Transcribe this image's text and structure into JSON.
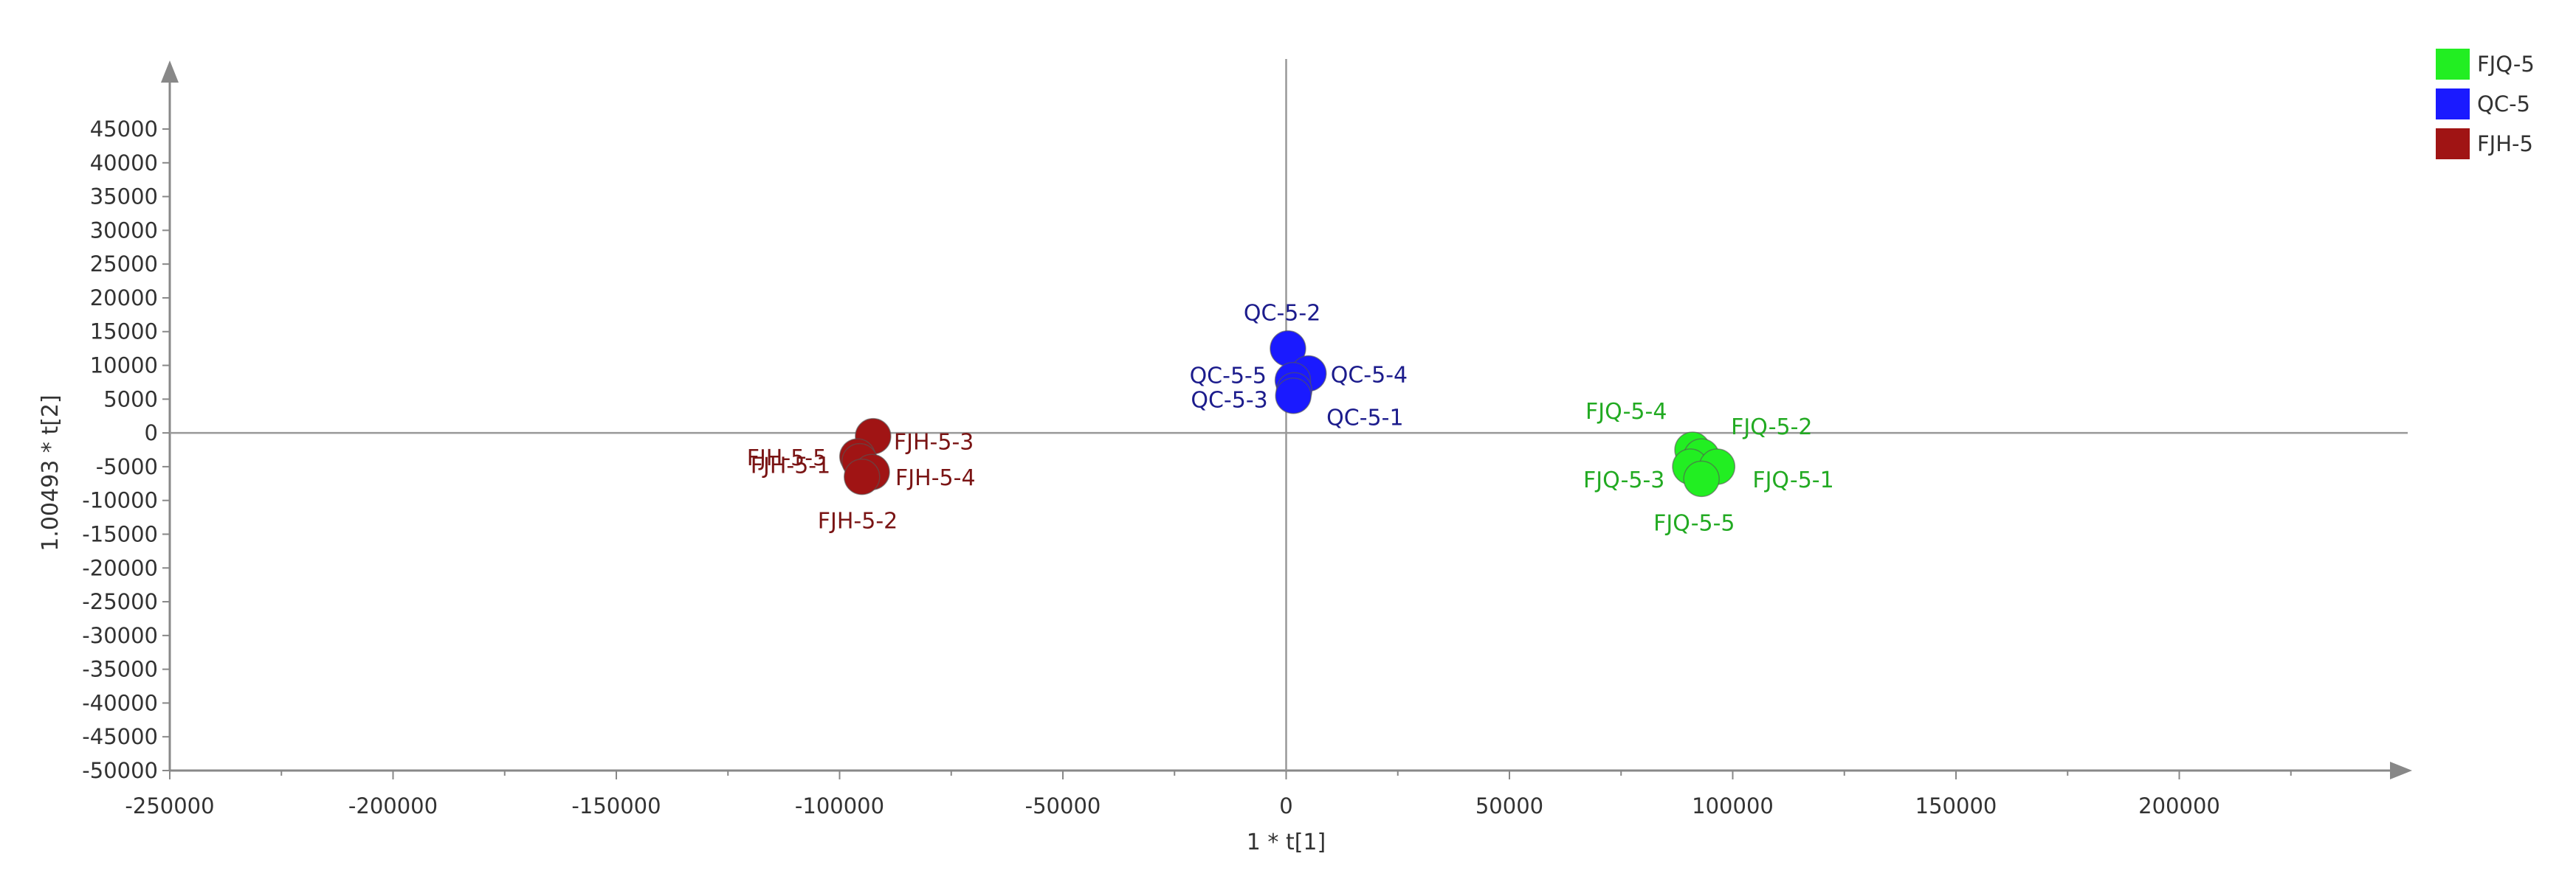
{
  "chart_data": {
    "type": "scatter",
    "xlabel": "1 * t[1]",
    "ylabel": "1.00493 * t[2]",
    "xlim": [
      -250000,
      250000
    ],
    "ylim": [
      -50000,
      50000
    ],
    "x_ticks": [
      -250000,
      -200000,
      -150000,
      -100000,
      -50000,
      0,
      50000,
      100000,
      150000,
      200000
    ],
    "y_ticks": [
      45000,
      40000,
      35000,
      30000,
      25000,
      20000,
      15000,
      10000,
      5000,
      0,
      -5000,
      -10000,
      -15000,
      -20000,
      -25000,
      -30000,
      -35000,
      -40000,
      -45000,
      -50000
    ],
    "grid": false,
    "legend_position": "top-right",
    "series": [
      {
        "name": "FJQ-5",
        "color": "#22ee22",
        "label_color": "#22aa22",
        "points": [
          {
            "label": "FJQ-5-4",
            "x": 91000,
            "y": -2500
          },
          {
            "label": "FJQ-5-2",
            "x": 93000,
            "y": -3500
          },
          {
            "label": "FJQ-5-3",
            "x": 90500,
            "y": -5000
          },
          {
            "label": "FJQ-5-1",
            "x": 96500,
            "y": -5000
          },
          {
            "label": "FJQ-5-5",
            "x": 93000,
            "y": -6800
          }
        ]
      },
      {
        "name": "QC-5",
        "color": "#1a1aff",
        "label_color": "#1c1c8c",
        "points": [
          {
            "label": "QC-5-2",
            "x": 400,
            "y": 12500
          },
          {
            "label": "QC-5-4",
            "x": 5000,
            "y": 8800
          },
          {
            "label": "QC-5-5",
            "x": 1500,
            "y": 7800
          },
          {
            "label": "QC-5-3",
            "x": 1800,
            "y": 6300
          },
          {
            "label": "QC-5-1",
            "x": 1600,
            "y": 5500
          }
        ]
      },
      {
        "name": "FJH-5",
        "color": "#a01414",
        "label_color": "#7a1414",
        "points": [
          {
            "label": "FJH-5-3",
            "x": -92500,
            "y": -500
          },
          {
            "label": "FJH-5-5",
            "x": -96000,
            "y": -3500
          },
          {
            "label": "FJH-5-1",
            "x": -95500,
            "y": -4200
          },
          {
            "label": "FJH-5-4",
            "x": -92800,
            "y": -5800
          },
          {
            "label": "FJH-5-2",
            "x": -95000,
            "y": -6500
          }
        ]
      }
    ]
  }
}
